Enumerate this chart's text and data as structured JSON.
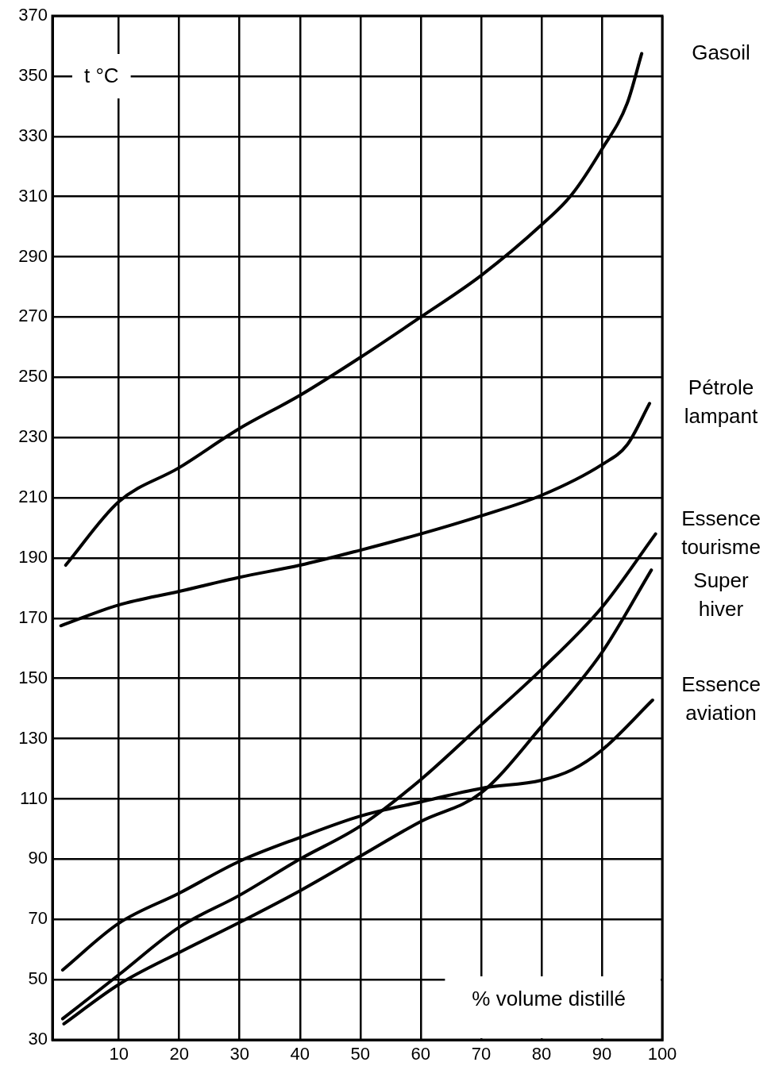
{
  "chart_data": {
    "type": "line",
    "xlabel": "% volume distillé",
    "ylabel": "t °C",
    "xlim": [
      -1,
      100
    ],
    "xticks": [
      10,
      20,
      30,
      40,
      50,
      60,
      70,
      80,
      90,
      100
    ],
    "ylim": [
      30,
      370
    ],
    "yticks": [
      30,
      50,
      70,
      90,
      110,
      130,
      150,
      170,
      190,
      210,
      230,
      250,
      270,
      290,
      310,
      330,
      350,
      370
    ],
    "grid": true,
    "legend": false,
    "marker": "none",
    "line_style": "solid",
    "series": [
      {
        "name": "Gasoil",
        "color": "#000000",
        "x": [
          1.2,
          10,
          20,
          30,
          40,
          50,
          60,
          70,
          80,
          85,
          90,
          94.2,
          96.6
        ],
        "values": [
          187.6,
          208.7,
          220,
          233,
          244,
          256.6,
          270,
          283.8,
          300.6,
          310.6,
          325.7,
          341,
          357.5
        ]
      },
      {
        "name": "Pétrole lampant",
        "color": "#000000",
        "x": [
          0.4,
          10,
          20,
          30,
          40,
          50,
          60,
          70,
          80,
          90,
          94.2,
          97.9
        ],
        "values": [
          167.5,
          174.4,
          178.9,
          183.6,
          187.6,
          192.6,
          198,
          204,
          210.8,
          221,
          227.6,
          241.3
        ]
      },
      {
        "name": "Essence tourisme",
        "color": "#000000",
        "x": [
          0.7,
          10,
          20,
          30,
          40,
          50,
          60,
          70,
          80,
          90,
          98.9
        ],
        "values": [
          37,
          51.6,
          67.4,
          78,
          90,
          101,
          116.4,
          134.6,
          153,
          173.6,
          198
        ]
      },
      {
        "name": "Super hiver",
        "color": "#000000",
        "x": [
          0.9,
          10,
          20,
          30,
          40,
          50,
          60,
          70,
          80,
          90,
          98.2
        ],
        "values": [
          35.3,
          48.4,
          59,
          69,
          79.5,
          91,
          102.5,
          112,
          134,
          158.6,
          186
        ]
      },
      {
        "name": "Essence aviation",
        "color": "#000000",
        "x": [
          0.7,
          10,
          20,
          30,
          40,
          50,
          60,
          70,
          80,
          85,
          90,
          98.4
        ],
        "values": [
          53.2,
          68.7,
          78.7,
          89.3,
          97.2,
          104.3,
          109,
          113.5,
          116.2,
          119.6,
          126.2,
          142.8
        ]
      }
    ]
  }
}
